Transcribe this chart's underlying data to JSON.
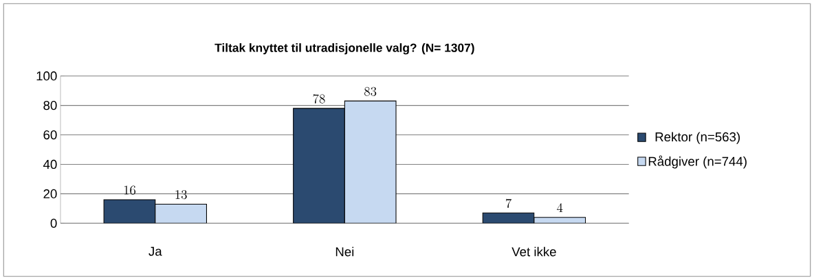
{
  "chart_data": {
    "type": "bar",
    "title": "Tiltak knyttet til utradisjonelle  valg? (N= 1307)",
    "categories": [
      "Ja",
      "Nei",
      "Vet ikke"
    ],
    "series": [
      {
        "name": "Rektor (n=563)",
        "color": "#2b4a70",
        "values": [
          16,
          78,
          7
        ]
      },
      {
        "name": "Rådgiver (n=744)",
        "color": "#c6d9f1",
        "values": [
          13,
          83,
          4
        ]
      }
    ],
    "ylim": [
      0,
      100
    ],
    "yticks": [
      0,
      20,
      40,
      60,
      80,
      100
    ],
    "grid": "y",
    "legend": "right",
    "data_labels": true
  }
}
